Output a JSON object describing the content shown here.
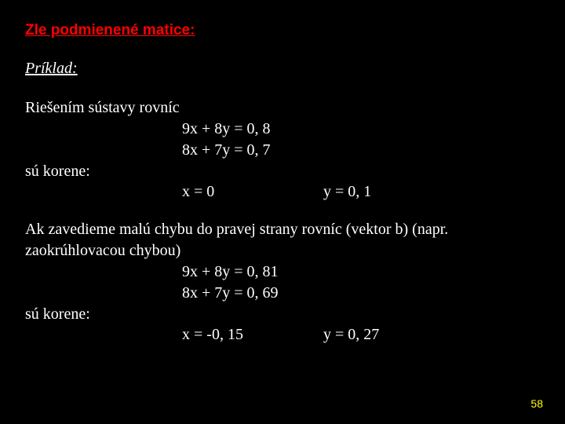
{
  "title": "Zle podmienené matice:",
  "subtitle": "Príklad:",
  "block1": {
    "intro": "Riešením sústavy rovníc",
    "eq1": "9x + 8y = 0, 8",
    "eq2": "8x + 7y = 0, 7",
    "roots_label": "sú korene:",
    "res_x": "x = 0",
    "res_y": "y = 0, 1"
  },
  "block2": {
    "intro_l1": "Ak zavedieme malú chybu do pravej strany rovníc (vektor b) (napr.",
    "intro_l2": "zaokrúhlovacou chybou)",
    "eq1": "9x + 8y = 0, 81",
    "eq2": "8x + 7y = 0, 69",
    "roots_label": "sú korene:",
    "res_x": "x = -0, 15",
    "res_y": "y = 0, 27"
  },
  "page_number": "58",
  "colors": {
    "background": "#000000",
    "text": "#ffffff",
    "title": "#ff0000",
    "page_number": "#ffff00"
  }
}
